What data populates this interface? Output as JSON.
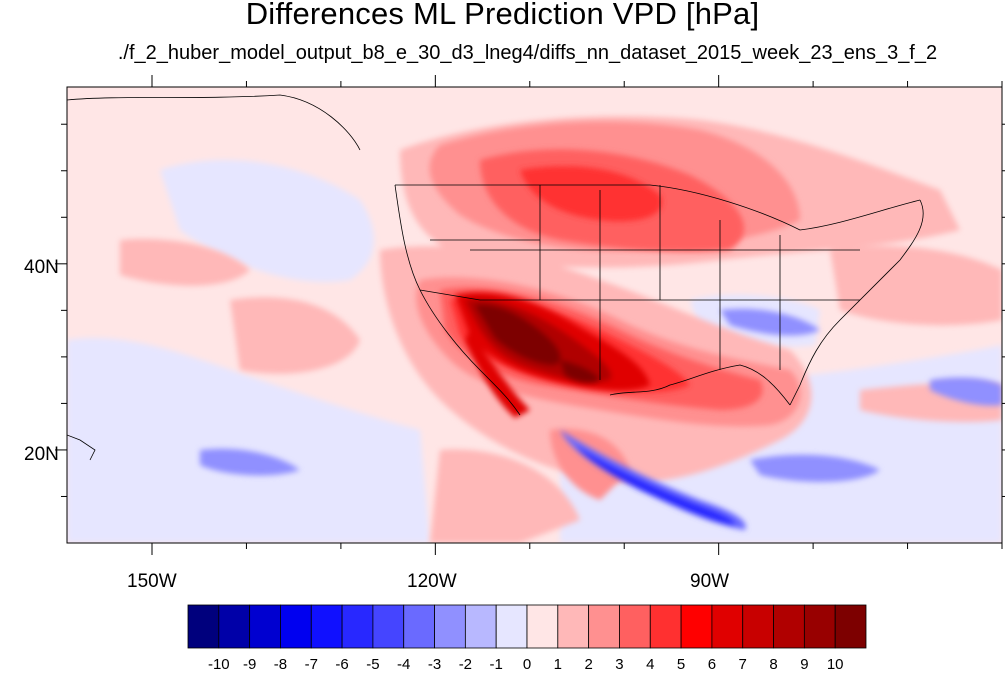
{
  "title": "Differences ML Prediction VPD [hPa]",
  "subtitle": "./f_2_huber_model_output_b8_e_30_d3_lneg4/diffs_nn_dataset_2015_week_23_ens_3_f_2",
  "map": {
    "lon_range": [
      -159,
      -60
    ],
    "lat_range": [
      10,
      59
    ],
    "lon_labels": [
      "150W",
      "120W",
      "90W"
    ],
    "lat_labels": [
      "40N",
      "20N"
    ]
  },
  "colorbar": {
    "colors": [
      "#00007d",
      "#0000a8",
      "#0000d0",
      "#0000f0",
      "#1010ff",
      "#2828ff",
      "#4545ff",
      "#6a6aff",
      "#9090ff",
      "#b8b8ff",
      "#e6e6ff",
      "#ffe6e6",
      "#ffb8b8",
      "#ff9090",
      "#ff6060",
      "#ff3030",
      "#ff0000",
      "#e00000",
      "#c80000",
      "#b00000",
      "#980000",
      "#7d0000"
    ],
    "ticks": [
      "-10",
      "-9",
      "-8",
      "-7",
      "-6",
      "-5",
      "-4",
      "-3",
      "-2",
      "-1",
      "0",
      "1",
      "2",
      "3",
      "4",
      "5",
      "6",
      "7",
      "8",
      "9",
      "10"
    ]
  }
}
